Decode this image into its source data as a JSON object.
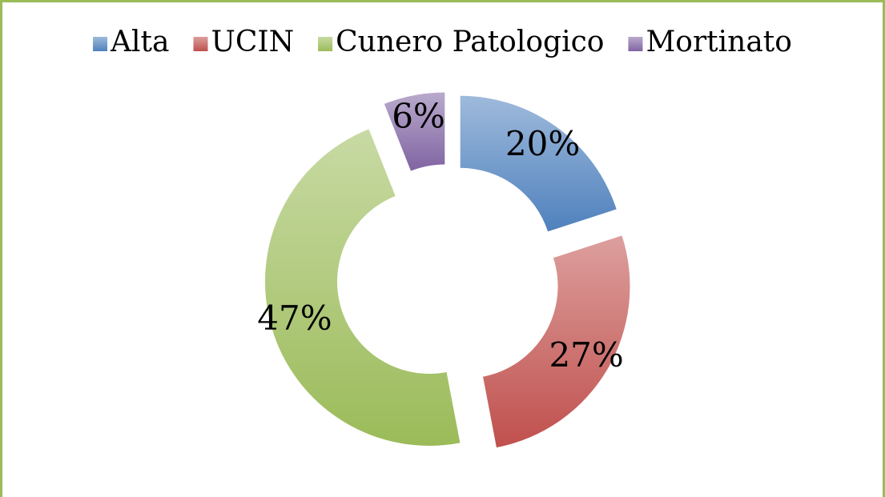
{
  "chart_data": {
    "type": "donut",
    "categories": [
      "Alta",
      "UCIN",
      "Cunero Patologico",
      "Mortinato"
    ],
    "values": [
      20,
      27,
      47,
      6
    ],
    "value_labels": [
      "20%",
      "27%",
      "47%",
      "6%"
    ],
    "colors": [
      "#4f81bd",
      "#c0504d",
      "#9bbb59",
      "#8064a2"
    ],
    "legend": "top"
  }
}
